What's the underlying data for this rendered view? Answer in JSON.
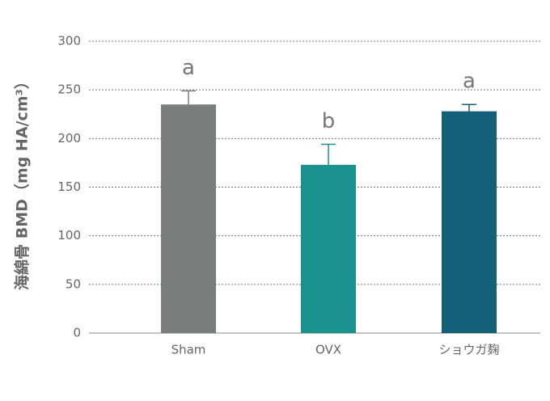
{
  "chart_data": {
    "type": "bar",
    "ylabel": "海綿骨 BMD（mg HA/cm³）",
    "categories": [
      "Sham",
      "OVX",
      "ショウガ麹"
    ],
    "values": [
      235,
      173,
      228
    ],
    "errors": [
      14,
      21,
      7
    ],
    "annotations": [
      "a",
      "b",
      "a"
    ],
    "colors": [
      "#7a7d7e",
      "#1b9190",
      "#146079"
    ],
    "ylim": [
      0,
      300
    ],
    "yticks": [
      0,
      50,
      100,
      150,
      200,
      250,
      300
    ],
    "grid": true
  }
}
